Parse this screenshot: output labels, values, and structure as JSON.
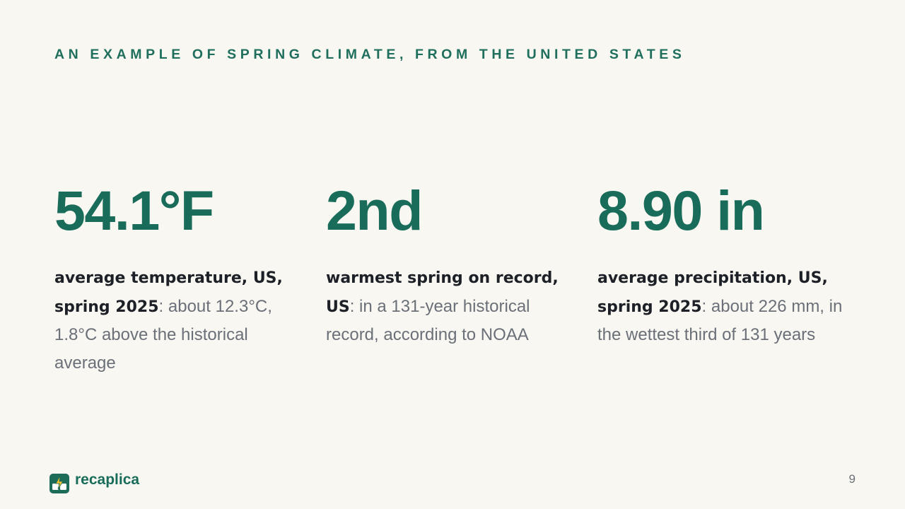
{
  "header": {
    "kicker": "AN EXAMPLE OF SPRING CLIMATE, FROM THE UNITED STATES"
  },
  "stats": [
    {
      "value": "54.1°F",
      "lead": "average temperature, US, spring 2025",
      "rest": ": about 12.3°C, 1.8°C above the historical average"
    },
    {
      "value": "2nd",
      "lead": "warmest spring on record, US",
      "rest": ": in a 131-year historical record, according to NOAA"
    },
    {
      "value": "8.90 in",
      "lead": "average precipitation, US, spring 2025",
      "rest": ": about 226 mm, in the wettest third of 131 years"
    }
  ],
  "footer": {
    "brand": "recaplica",
    "logo_icon": "recaplica-logo-icon",
    "page_number": "9"
  },
  "colors": {
    "background": "#f8f7f2",
    "accent": "#1a6c5a",
    "lead_text": "#1d2127",
    "body_text": "#6b7078"
  }
}
